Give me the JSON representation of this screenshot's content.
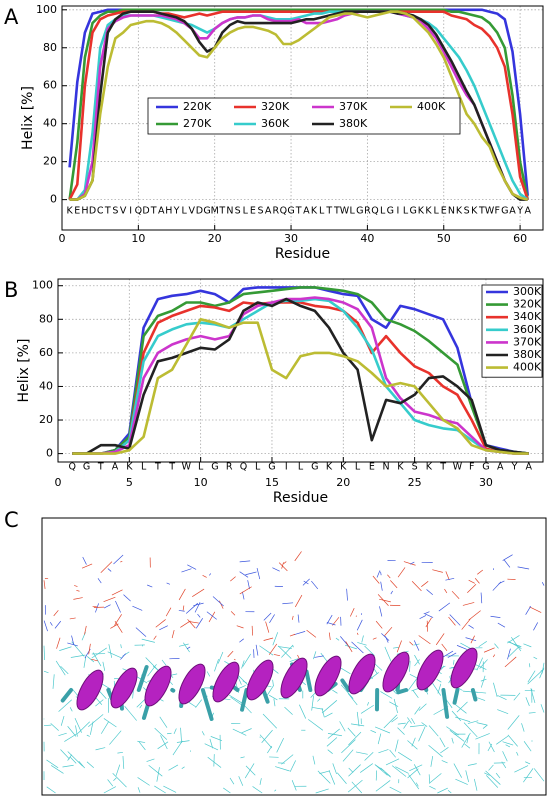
{
  "panel_labels": [
    "A",
    "B",
    "C"
  ],
  "chart_data": [
    {
      "type": "line",
      "x_label": "Residue",
      "y_label": "Helix [%]",
      "grid": true,
      "legend": "center",
      "xlim": [
        0,
        63
      ],
      "ylim": [
        -16,
        102
      ],
      "xticks": [
        0,
        10,
        20,
        30,
        40,
        50,
        60
      ],
      "yticks": [
        0,
        20,
        40,
        60,
        80,
        100
      ],
      "x": [
        1,
        2,
        3,
        4,
        5,
        6,
        7,
        8,
        9,
        10,
        11,
        12,
        13,
        14,
        15,
        16,
        17,
        18,
        19,
        20,
        21,
        22,
        23,
        24,
        25,
        26,
        27,
        28,
        29,
        30,
        31,
        32,
        33,
        34,
        35,
        36,
        37,
        38,
        39,
        40,
        41,
        42,
        43,
        44,
        45,
        46,
        47,
        48,
        49,
        50,
        51,
        52,
        53,
        54,
        55,
        56,
        57,
        58,
        59,
        60,
        61
      ],
      "residue_labels": [
        "K",
        "E",
        "H",
        "D",
        "C",
        "T",
        "S",
        "V",
        "I",
        "Q",
        "D",
        "T",
        "A",
        "H",
        "Y",
        "L",
        "V",
        "D",
        "G",
        "M",
        "T",
        "N",
        "S",
        "L",
        "E",
        "S",
        "A",
        "R",
        "Q",
        "G",
        "T",
        "A",
        "K",
        "L",
        "T",
        "T",
        "W",
        "L",
        "G",
        "R",
        "Q",
        "L",
        "G",
        "I",
        "L",
        "G",
        "K",
        "K",
        "L",
        "E",
        "N",
        "K",
        "S",
        "K",
        "T",
        "W",
        "F",
        "G",
        "A",
        "Y",
        "A"
      ],
      "series": [
        {
          "name": "220K",
          "color": "#3535dd",
          "values": [
            17,
            62,
            88,
            98,
            99,
            100,
            100,
            100,
            100,
            100,
            100,
            100,
            100,
            100,
            100,
            100,
            100,
            100,
            100,
            100,
            100,
            100,
            100,
            100,
            100,
            100,
            100,
            100,
            100,
            100,
            100,
            100,
            100,
            100,
            100,
            100,
            100,
            100,
            100,
            100,
            100,
            100,
            100,
            100,
            100,
            100,
            100,
            100,
            100,
            100,
            100,
            100,
            100,
            100,
            100,
            99,
            98,
            95,
            78,
            45,
            2
          ]
        },
        {
          "name": "270K",
          "color": "#359a35",
          "values": [
            0,
            30,
            75,
            93,
            97,
            99,
            99,
            100,
            100,
            100,
            100,
            100,
            100,
            100,
            100,
            100,
            100,
            100,
            100,
            100,
            100,
            100,
            100,
            100,
            100,
            100,
            100,
            100,
            100,
            100,
            100,
            100,
            100,
            100,
            100,
            100,
            100,
            100,
            100,
            100,
            100,
            100,
            100,
            100,
            100,
            100,
            100,
            100,
            100,
            100,
            99,
            99,
            98,
            97,
            96,
            93,
            88,
            80,
            55,
            20,
            0
          ]
        },
        {
          "name": "320K",
          "color": "#e8322c",
          "values": [
            0,
            8,
            60,
            88,
            95,
            97,
            98,
            99,
            99,
            99,
            99,
            99,
            98,
            98,
            97,
            96,
            97,
            98,
            97,
            98,
            99,
            99,
            99,
            99,
            99,
            99,
            99,
            99,
            99,
            99,
            99,
            99,
            99,
            99,
            99,
            99,
            99,
            99,
            99,
            99,
            99,
            99,
            99,
            99,
            99,
            99,
            99,
            99,
            99,
            99,
            97,
            96,
            95,
            92,
            90,
            86,
            80,
            70,
            45,
            12,
            0
          ]
        },
        {
          "name": "360K",
          "color": "#36cccc",
          "values": [
            0,
            0,
            5,
            35,
            80,
            92,
            95,
            97,
            97,
            97,
            97,
            97,
            96,
            95,
            94,
            93,
            92,
            90,
            88,
            90,
            93,
            95,
            96,
            96,
            97,
            97,
            96,
            95,
            95,
            95,
            96,
            97,
            98,
            98,
            99,
            99,
            99,
            99,
            99,
            99,
            99,
            99,
            99,
            98,
            97,
            96,
            95,
            93,
            90,
            85,
            80,
            75,
            68,
            60,
            50,
            40,
            30,
            20,
            10,
            3,
            0
          ]
        },
        {
          "name": "370K",
          "color": "#cc35cc",
          "values": [
            0,
            0,
            3,
            20,
            70,
            90,
            94,
            96,
            97,
            97,
            97,
            97,
            97,
            96,
            95,
            93,
            90,
            85,
            85,
            90,
            93,
            95,
            96,
            96,
            97,
            97,
            95,
            94,
            94,
            94,
            95,
            93,
            93,
            93,
            94,
            95,
            97,
            98,
            99,
            99,
            99,
            99,
            99,
            98,
            97,
            96,
            94,
            90,
            85,
            78,
            70,
            62,
            55,
            50,
            40,
            30,
            20,
            10,
            3,
            1,
            0
          ]
        },
        {
          "name": "380K",
          "color": "#222222",
          "values": [
            0,
            0,
            2,
            10,
            55,
            88,
            95,
            98,
            99,
            99,
            99,
            99,
            98,
            97,
            96,
            94,
            90,
            83,
            78,
            80,
            88,
            92,
            94,
            93,
            93,
            93,
            93,
            93,
            93,
            93,
            94,
            95,
            95,
            96,
            97,
            98,
            99,
            99,
            99,
            99,
            99,
            99,
            99,
            98,
            98,
            97,
            95,
            92,
            87,
            80,
            73,
            65,
            57,
            50,
            40,
            30,
            20,
            10,
            3,
            0,
            0
          ]
        },
        {
          "name": "400K",
          "color": "#bcbc33",
          "values": [
            0,
            0,
            2,
            10,
            45,
            70,
            85,
            88,
            92,
            93,
            94,
            94,
            93,
            91,
            88,
            84,
            80,
            76,
            75,
            80,
            85,
            88,
            90,
            91,
            91,
            90,
            89,
            87,
            82,
            82,
            84,
            87,
            90,
            93,
            96,
            97,
            98,
            98,
            97,
            96,
            97,
            98,
            99,
            99,
            98,
            96,
            92,
            88,
            82,
            75,
            65,
            55,
            45,
            40,
            33,
            28,
            18,
            10,
            3,
            1,
            0
          ]
        }
      ]
    },
    {
      "type": "line",
      "x_label": "Residue",
      "y_label": "Helix [%]",
      "grid": true,
      "legend": "upper right",
      "xlim": [
        0,
        34
      ],
      "ylim": [
        -5,
        104
      ],
      "xticks": [
        0,
        5,
        10,
        15,
        20,
        25,
        30
      ],
      "yticks": [
        0,
        20,
        40,
        60,
        80,
        100
      ],
      "x": [
        1,
        2,
        3,
        4,
        5,
        6,
        7,
        8,
        9,
        10,
        11,
        12,
        13,
        14,
        15,
        16,
        17,
        18,
        19,
        20,
        21,
        22,
        23,
        24,
        25,
        26,
        27,
        28,
        29,
        30,
        31,
        32,
        33
      ],
      "residue_labels": [
        "Q",
        "G",
        "T",
        "A",
        "K",
        "L",
        "T",
        "T",
        "W",
        "L",
        "G",
        "R",
        "Q",
        "L",
        "G",
        "I",
        "L",
        "G",
        "K",
        "K",
        "L",
        "E",
        "N",
        "K",
        "S",
        "K",
        "T",
        "W",
        "F",
        "G",
        "A",
        "Y",
        "A"
      ],
      "series": [
        {
          "name": "300K",
          "color": "#3535dd",
          "values": [
            0,
            0,
            0,
            2,
            12,
            75,
            92,
            94,
            95,
            97,
            95,
            90,
            98,
            99,
            99,
            99,
            99,
            99,
            97,
            95,
            94,
            80,
            75,
            88,
            86,
            83,
            80,
            63,
            30,
            5,
            3,
            1,
            0
          ]
        },
        {
          "name": "320K",
          "color": "#359a35",
          "values": [
            0,
            0,
            0,
            2,
            10,
            70,
            82,
            85,
            90,
            90,
            88,
            90,
            95,
            96,
            97,
            98,
            99,
            99,
            98,
            97,
            95,
            90,
            80,
            77,
            73,
            67,
            60,
            53,
            28,
            5,
            2,
            1,
            0
          ]
        },
        {
          "name": "340K",
          "color": "#e8322c",
          "values": [
            0,
            0,
            0,
            1,
            8,
            60,
            78,
            82,
            85,
            88,
            87,
            85,
            90,
            89,
            90,
            90,
            90,
            88,
            87,
            85,
            78,
            60,
            70,
            60,
            52,
            48,
            40,
            35,
            20,
            3,
            1,
            0,
            0
          ]
        },
        {
          "name": "360K",
          "color": "#36cccc",
          "values": [
            0,
            0,
            0,
            1,
            8,
            55,
            70,
            74,
            77,
            78,
            77,
            75,
            80,
            85,
            90,
            91,
            91,
            92,
            91,
            85,
            75,
            62,
            40,
            30,
            20,
            17,
            15,
            14,
            8,
            2,
            1,
            0,
            0
          ]
        },
        {
          "name": "370K",
          "color": "#cc35cc",
          "values": [
            0,
            0,
            0,
            1,
            5,
            45,
            60,
            65,
            68,
            70,
            68,
            70,
            83,
            88,
            90,
            92,
            92,
            93,
            92,
            90,
            86,
            75,
            45,
            33,
            25,
            23,
            20,
            18,
            10,
            2,
            1,
            0,
            0
          ]
        },
        {
          "name": "380K",
          "color": "#222222",
          "values": [
            0,
            0,
            5,
            5,
            3,
            35,
            55,
            57,
            60,
            63,
            62,
            68,
            85,
            90,
            88,
            92,
            88,
            85,
            75,
            60,
            50,
            8,
            32,
            30,
            35,
            45,
            46,
            40,
            32,
            5,
            2,
            1,
            0
          ]
        },
        {
          "name": "400K",
          "color": "#bcbc33",
          "values": [
            0,
            0,
            0,
            0,
            2,
            10,
            45,
            50,
            65,
            80,
            78,
            75,
            78,
            78,
            50,
            45,
            58,
            60,
            60,
            58,
            55,
            48,
            40,
            42,
            40,
            30,
            20,
            15,
            5,
            2,
            1,
            0,
            0
          ]
        }
      ]
    }
  ]
}
